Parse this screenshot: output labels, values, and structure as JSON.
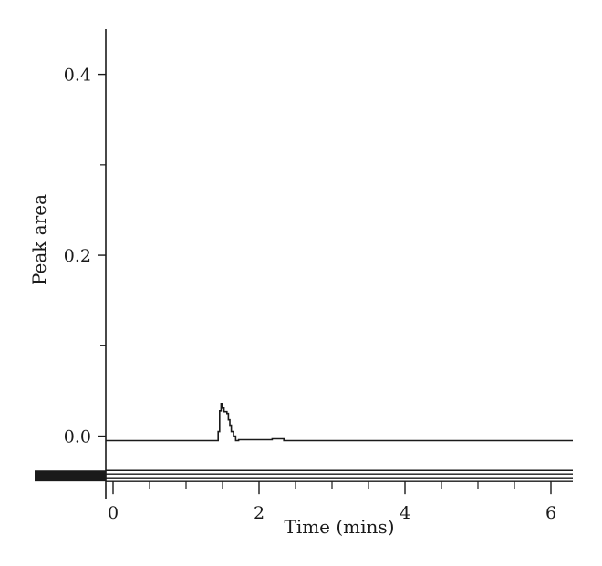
{
  "chart_data": {
    "type": "line",
    "title": "",
    "xlabel": "Time (mins)",
    "ylabel": "Peak area",
    "xlim": [
      -0.1,
      6.3
    ],
    "ylim": [
      -0.07,
      0.45
    ],
    "x_ticks": [
      {
        "value": 0,
        "label": "0"
      },
      {
        "value": 2,
        "label": "2"
      },
      {
        "value": 4,
        "label": "4"
      },
      {
        "value": 6,
        "label": "6"
      }
    ],
    "x_minor_ticks": [
      0.5,
      1,
      1.5,
      2.5,
      3,
      3.5,
      4.5,
      5,
      5.5
    ],
    "y_ticks": [
      {
        "value": 0.0,
        "label": "0.0"
      },
      {
        "value": 0.2,
        "label": "0.2"
      },
      {
        "value": 0.4,
        "label": "0.4"
      }
    ],
    "y_minor_ticks": [
      0.1,
      0.3
    ],
    "grid": false,
    "series": [
      {
        "color": "#1a1a1a",
        "step": true,
        "points": [
          [
            -0.1,
            -0.005
          ],
          [
            1.42,
            -0.005
          ],
          [
            1.44,
            0.005
          ],
          [
            1.46,
            0.028
          ],
          [
            1.48,
            0.036
          ],
          [
            1.5,
            0.031
          ],
          [
            1.52,
            0.027
          ],
          [
            1.56,
            0.025
          ],
          [
            1.58,
            0.018
          ],
          [
            1.6,
            0.012
          ],
          [
            1.62,
            0.005
          ],
          [
            1.65,
            0.0
          ],
          [
            1.68,
            -0.005
          ],
          [
            1.72,
            -0.004
          ],
          [
            2.1,
            -0.004
          ],
          [
            2.18,
            -0.003
          ],
          [
            2.3,
            -0.003
          ],
          [
            2.34,
            -0.005
          ],
          [
            6.3,
            -0.005
          ]
        ]
      }
    ],
    "baseline_band": {
      "y_top": -0.038,
      "y_bottom": -0.05,
      "color": "#1a1a1a"
    }
  }
}
